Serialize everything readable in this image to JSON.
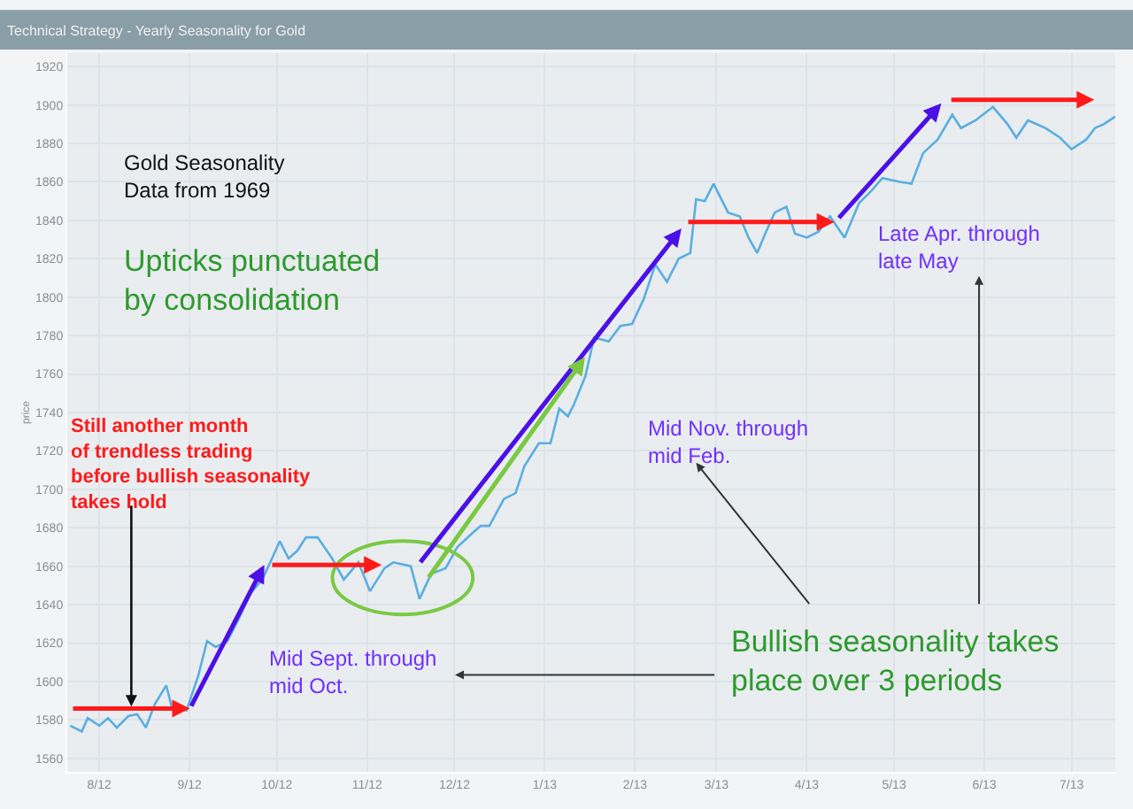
{
  "chart_data": {
    "type": "line",
    "title": "Technical Strategy - Yearly Seasonality for Gold",
    "ylabel": "price",
    "xlim": [
      "2012-07-21",
      "2013-07-16"
    ],
    "xticks": [
      {
        "value": "2012-08-01",
        "label": "8/12"
      },
      {
        "value": "2012-09-01",
        "label": "9/12"
      },
      {
        "value": "2012-10-01",
        "label": "10/12"
      },
      {
        "value": "2012-11-01",
        "label": "11/12"
      },
      {
        "value": "2012-12-01",
        "label": "12/12"
      },
      {
        "value": "2013-01-01",
        "label": "1/13"
      },
      {
        "value": "2013-02-01",
        "label": "2/13"
      },
      {
        "value": "2013-03-01",
        "label": "3/13"
      },
      {
        "value": "2013-04-01",
        "label": "4/13"
      },
      {
        "value": "2013-05-01",
        "label": "5/13"
      },
      {
        "value": "2013-06-01",
        "label": "6/13"
      },
      {
        "value": "2013-07-01",
        "label": "7/13"
      }
    ],
    "ylim": [
      1553,
      1927
    ],
    "yticks": [
      1560,
      1580,
      1600,
      1620,
      1640,
      1660,
      1680,
      1700,
      1720,
      1740,
      1760,
      1780,
      1800,
      1820,
      1840,
      1860,
      1880,
      1900,
      1920
    ],
    "grid": true,
    "marker": "none",
    "line_style": "solid",
    "series": [
      {
        "color": "#5aaee0",
        "x": [
          "2012-07-22",
          "2012-07-26",
          "2012-07-28",
          "2012-08-01",
          "2012-08-04",
          "2012-08-07",
          "2012-08-11",
          "2012-08-14",
          "2012-08-17",
          "2012-08-20",
          "2012-08-24",
          "2012-08-26",
          "2012-08-31",
          "2012-09-04",
          "2012-09-07",
          "2012-09-10",
          "2012-09-14",
          "2012-09-18",
          "2012-09-22",
          "2012-09-26",
          "2012-09-29",
          "2012-10-02",
          "2012-10-05",
          "2012-10-08",
          "2012-10-11",
          "2012-10-15",
          "2012-10-20",
          "2012-10-24",
          "2012-10-29",
          "2012-11-02",
          "2012-11-07",
          "2012-11-10",
          "2012-11-16",
          "2012-11-19",
          "2012-11-23",
          "2012-11-28",
          "2012-12-02",
          "2012-12-07",
          "2012-12-10",
          "2012-12-13",
          "2012-12-18",
          "2012-12-22",
          "2012-12-25",
          "2012-12-30",
          "2013-01-03",
          "2013-01-06",
          "2013-01-09",
          "2013-01-11",
          "2013-01-15",
          "2013-01-18",
          "2013-01-23",
          "2013-01-27",
          "2013-01-31",
          "2013-02-04",
          "2013-02-08",
          "2013-02-12",
          "2013-02-16",
          "2013-02-20",
          "2013-02-22",
          "2013-02-25",
          "2013-02-28",
          "2013-03-05",
          "2013-03-09",
          "2013-03-12",
          "2013-03-15",
          "2013-03-18",
          "2013-03-21",
          "2013-03-25",
          "2013-03-28",
          "2013-04-01",
          "2013-04-05",
          "2013-04-09",
          "2013-04-14",
          "2013-04-19",
          "2013-04-23",
          "2013-04-27",
          "2013-05-03",
          "2013-05-07",
          "2013-05-11",
          "2013-05-16",
          "2013-05-21",
          "2013-05-24",
          "2013-05-29",
          "2013-06-04",
          "2013-06-09",
          "2013-06-12",
          "2013-06-16",
          "2013-06-22",
          "2013-06-27",
          "2013-07-01",
          "2013-07-06",
          "2013-07-09",
          "2013-07-12",
          "2013-07-16"
        ],
        "values": [
          1577,
          1574,
          1581,
          1577,
          1581,
          1576,
          1582,
          1583,
          1576,
          1588,
          1598,
          1586,
          1585,
          1603,
          1621,
          1618,
          1621,
          1633,
          1646,
          1653,
          1663,
          1673,
          1664,
          1668,
          1675,
          1675,
          1664,
          1653,
          1662,
          1647,
          1659,
          1662,
          1660,
          1643,
          1656,
          1659,
          1670,
          1677,
          1681,
          1681,
          1695,
          1698,
          1712,
          1724,
          1724,
          1742,
          1738,
          1744,
          1759,
          1779,
          1777,
          1785,
          1786,
          1799,
          1817,
          1808,
          1820,
          1823,
          1851,
          1850,
          1859,
          1844,
          1842,
          1831,
          1823,
          1834,
          1844,
          1847,
          1833,
          1831,
          1834,
          1842,
          1831,
          1849,
          1855,
          1862,
          1860,
          1859,
          1875,
          1882,
          1895,
          1888,
          1892,
          1899,
          1890,
          1883,
          1892,
          1888,
          1883,
          1877,
          1882,
          1888,
          1890,
          1894
        ]
      }
    ],
    "annotations": [
      "Gold Seasonality\nData from 1969",
      "Upticks punctuated\nby consolidation",
      {
        "text": "Still another month\nof trendless trading\nbefore bullish seasonality\ntakes hold",
        "x": "2012-08-12",
        "y": 1587
      },
      "Mid Sept. through\nmid Oct.",
      "Mid Nov. through\nmid Feb.",
      "Late Apr. through\nlate May",
      "Bullish seasonality takes\nplace over 3 periods"
    ]
  }
}
